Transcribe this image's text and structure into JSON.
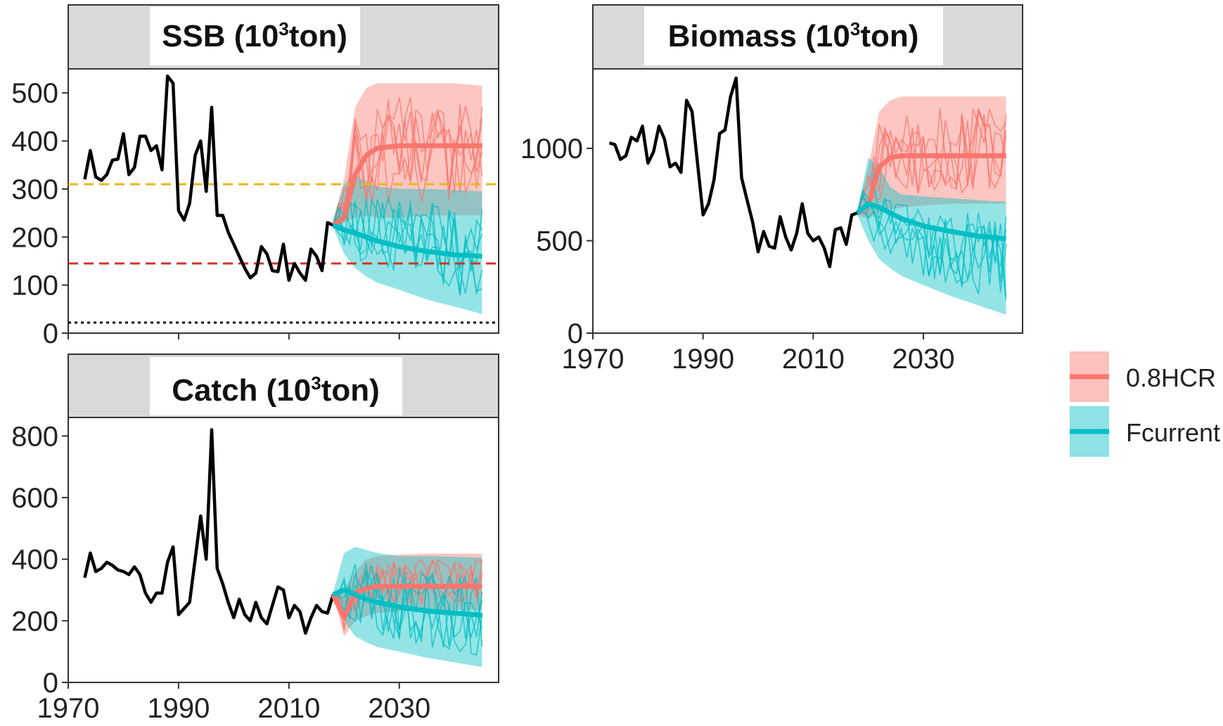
{
  "colors": {
    "historical": "#000000",
    "hcr": "#F8766D",
    "hcr_band": "#F8766D",
    "fcurrent": "#00BFC4",
    "fcurrent_band": "#00BFC4",
    "ref_yellow": "#E6B820",
    "ref_red": "#D0352B",
    "ref_black": "#000000",
    "strip": "#D9D9D9"
  },
  "legend": {
    "items": [
      {
        "label": "0.8HCR",
        "color": "#F8766D"
      },
      {
        "label": "Fcurrent",
        "color": "#00BFC4"
      }
    ]
  },
  "chart_data": [
    {
      "id": "ssb",
      "type": "line",
      "title": "SSB (10³ton)",
      "title_parts": {
        "pre": "SSB (10",
        "sup": "3",
        "post": "ton)"
      },
      "xlim": [
        1970,
        2048
      ],
      "ylim": [
        0,
        550
      ],
      "xticks": [
        1970,
        1990,
        2010,
        2030
      ],
      "yticks": [
        0,
        100,
        200,
        300,
        400,
        500
      ],
      "historical": {
        "x": [
          1973,
          1974,
          1975,
          1976,
          1977,
          1978,
          1979,
          1980,
          1981,
          1982,
          1983,
          1984,
          1985,
          1986,
          1987,
          1988,
          1989,
          1990,
          1991,
          1992,
          1993,
          1994,
          1995,
          1996,
          1997,
          1998,
          1999,
          2000,
          2001,
          2002,
          2003,
          2004,
          2005,
          2006,
          2007,
          2008,
          2009,
          2010,
          2011,
          2012,
          2013,
          2014,
          2015,
          2016,
          2017,
          2018
        ],
        "y": [
          320,
          380,
          325,
          318,
          330,
          360,
          362,
          415,
          330,
          345,
          410,
          410,
          380,
          390,
          340,
          535,
          520,
          255,
          235,
          270,
          370,
          400,
          295,
          470,
          245,
          245,
          210,
          185,
          160,
          135,
          115,
          125,
          180,
          165,
          130,
          128,
          185,
          110,
          145,
          125,
          110,
          175,
          160,
          130,
          230,
          225
        ]
      },
      "reference_lines": [
        {
          "y": 310,
          "style": "dashed",
          "color": "#E6B820"
        },
        {
          "y": 145,
          "style": "dashed",
          "color": "#D0352B"
        },
        {
          "y": 22,
          "style": "dotted",
          "color": "#000000"
        }
      ],
      "projections": [
        {
          "name": "0.8HCR",
          "color": "#F8766D",
          "x": [
            2018,
            2020,
            2022,
            2024,
            2026,
            2030,
            2035,
            2040,
            2045
          ],
          "median": [
            225,
            240,
            330,
            370,
            385,
            390,
            390,
            390,
            390
          ],
          "lower": [
            220,
            230,
            240,
            245,
            240,
            240,
            245,
            245,
            245
          ],
          "upper": [
            235,
            320,
            470,
            510,
            520,
            520,
            520,
            520,
            515
          ]
        },
        {
          "name": "Fcurrent",
          "color": "#00BFC4",
          "x": [
            2018,
            2020,
            2022,
            2024,
            2026,
            2030,
            2035,
            2040,
            2045
          ],
          "median": [
            225,
            215,
            208,
            200,
            192,
            180,
            170,
            163,
            160
          ],
          "lower": [
            220,
            165,
            135,
            118,
            105,
            90,
            70,
            55,
            40
          ],
          "upper": [
            235,
            310,
            330,
            315,
            305,
            300,
            300,
            298,
            295
          ]
        }
      ]
    },
    {
      "id": "biomass",
      "type": "line",
      "title": "Biomass (10³ton)",
      "title_parts": {
        "pre": "Biomass (10",
        "sup": "3",
        "post": "ton)"
      },
      "xlim": [
        1970,
        2048
      ],
      "ylim": [
        0,
        1430
      ],
      "xticks": [
        1970,
        1990,
        2010,
        2030
      ],
      "yticks": [
        0,
        500,
        1000
      ],
      "historical": {
        "x": [
          1973,
          1974,
          1975,
          1976,
          1977,
          1978,
          1979,
          1980,
          1981,
          1982,
          1983,
          1984,
          1985,
          1986,
          1987,
          1988,
          1989,
          1990,
          1991,
          1992,
          1993,
          1994,
          1995,
          1996,
          1997,
          1998,
          1999,
          2000,
          2001,
          2002,
          2003,
          2004,
          2005,
          2006,
          2007,
          2008,
          2009,
          2010,
          2011,
          2012,
          2013,
          2014,
          2015,
          2016,
          2017,
          2018
        ],
        "y": [
          1030,
          1020,
          940,
          960,
          1060,
          1040,
          1120,
          920,
          980,
          1120,
          1050,
          900,
          920,
          870,
          1260,
          1200,
          920,
          640,
          700,
          830,
          1080,
          1100,
          1280,
          1380,
          840,
          720,
          600,
          440,
          550,
          470,
          460,
          630,
          520,
          450,
          540,
          700,
          540,
          500,
          520,
          460,
          360,
          560,
          570,
          480,
          640,
          650
        ]
      },
      "projections": [
        {
          "name": "0.8HCR",
          "color": "#F8766D",
          "x": [
            2018,
            2020,
            2022,
            2024,
            2026,
            2030,
            2035,
            2040,
            2045
          ],
          "median": [
            650,
            700,
            900,
            950,
            960,
            960,
            960,
            960,
            960
          ],
          "lower": [
            640,
            620,
            650,
            670,
            680,
            690,
            700,
            700,
            700
          ],
          "upper": [
            660,
            900,
            1200,
            1260,
            1280,
            1280,
            1280,
            1280,
            1280
          ]
        },
        {
          "name": "Fcurrent",
          "color": "#00BFC4",
          "x": [
            2018,
            2020,
            2022,
            2024,
            2026,
            2030,
            2035,
            2040,
            2045
          ],
          "median": [
            650,
            700,
            680,
            650,
            620,
            580,
            550,
            525,
            510
          ],
          "lower": [
            640,
            500,
            400,
            350,
            310,
            260,
            200,
            150,
            100
          ],
          "upper": [
            660,
            950,
            900,
            790,
            750,
            740,
            730,
            720,
            710
          ]
        }
      ]
    },
    {
      "id": "catch",
      "type": "line",
      "title": "Catch (10³ton)",
      "title_parts": {
        "pre": "Catch (10",
        "sup": "3",
        "post": "ton)"
      },
      "xlim": [
        1970,
        2048
      ],
      "ylim": [
        0,
        860
      ],
      "xticks": [
        1970,
        1990,
        2010,
        2030
      ],
      "yticks": [
        0,
        200,
        400,
        600,
        800
      ],
      "historical": {
        "x": [
          1973,
          1974,
          1975,
          1976,
          1977,
          1978,
          1979,
          1980,
          1981,
          1982,
          1983,
          1984,
          1985,
          1986,
          1987,
          1988,
          1989,
          1990,
          1991,
          1992,
          1993,
          1994,
          1995,
          1996,
          1997,
          1998,
          1999,
          2000,
          2001,
          2002,
          2003,
          2004,
          2005,
          2006,
          2007,
          2008,
          2009,
          2010,
          2011,
          2012,
          2013,
          2014,
          2015,
          2016,
          2017,
          2018
        ],
        "y": [
          340,
          420,
          360,
          370,
          390,
          380,
          365,
          360,
          350,
          375,
          350,
          290,
          260,
          290,
          290,
          390,
          440,
          220,
          240,
          260,
          400,
          540,
          400,
          820,
          370,
          320,
          260,
          210,
          270,
          220,
          200,
          260,
          210,
          190,
          250,
          310,
          300,
          210,
          250,
          230,
          160,
          210,
          250,
          230,
          225,
          285
        ]
      },
      "projections": [
        {
          "name": "0.8HCR",
          "color": "#F8766D",
          "x": [
            2018,
            2020,
            2022,
            2024,
            2026,
            2030,
            2035,
            2040,
            2045
          ],
          "median": [
            285,
            210,
            290,
            305,
            312,
            312,
            312,
            312,
            312
          ],
          "lower": [
            280,
            150,
            200,
            215,
            225,
            230,
            235,
            235,
            235
          ],
          "upper": [
            290,
            300,
            360,
            400,
            410,
            415,
            418,
            418,
            418
          ]
        },
        {
          "name": "Fcurrent",
          "color": "#00BFC4",
          "x": [
            2018,
            2020,
            2022,
            2024,
            2026,
            2030,
            2035,
            2040,
            2045
          ],
          "median": [
            285,
            300,
            285,
            270,
            260,
            245,
            232,
            225,
            218
          ],
          "lower": [
            280,
            200,
            150,
            130,
            115,
            100,
            80,
            65,
            50
          ],
          "upper": [
            290,
            420,
            440,
            430,
            420,
            410,
            410,
            408,
            405
          ]
        }
      ]
    }
  ]
}
